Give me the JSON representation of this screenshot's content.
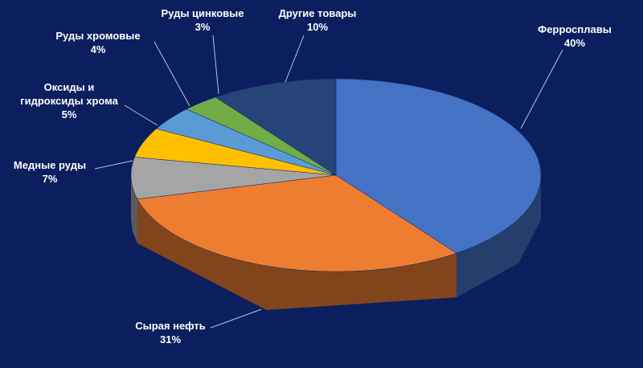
{
  "chart_data": {
    "type": "pie3d",
    "categories": [
      "Ферросплавы",
      "Сырая нефть",
      "Медные руды",
      "Оксиды и гидроксиды хрома",
      "Руды хромовые",
      "Руды цинковые",
      "Другие товары"
    ],
    "values": [
      40,
      31,
      7,
      5,
      4,
      3,
      10
    ],
    "value_labels": [
      "40%",
      "31%",
      "7%",
      "5%",
      "4%",
      "3%",
      "10%"
    ],
    "colors": [
      "#4472c4",
      "#ed7d31",
      "#a5a5a5",
      "#ffc000",
      "#5b9bd5",
      "#70ad47",
      "#264478"
    ]
  }
}
